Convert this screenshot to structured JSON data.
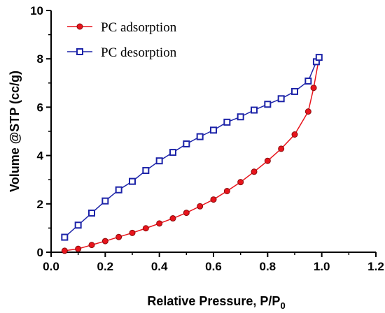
{
  "chart_data": {
    "type": "line",
    "xlabel": "Relative Pressure, P/P",
    "xlabel_subscript": "0",
    "ylabel": "Volume @STP  (cc/g)",
    "xlim": [
      0.0,
      1.2
    ],
    "ylim": [
      0,
      10
    ],
    "x_ticks": [
      "0.0",
      "0.2",
      "0.4",
      "0.6",
      "0.8",
      "1.0",
      "1.2"
    ],
    "y_ticks": [
      "0",
      "2",
      "4",
      "6",
      "8",
      "10"
    ],
    "grid": false,
    "legend_position": "top-left",
    "series": [
      {
        "name": "PC adsorption",
        "color": "#e8141c",
        "marker": "circle",
        "x": [
          0.05,
          0.1,
          0.15,
          0.2,
          0.25,
          0.3,
          0.35,
          0.4,
          0.45,
          0.5,
          0.55,
          0.6,
          0.65,
          0.7,
          0.75,
          0.8,
          0.85,
          0.9,
          0.95,
          0.97,
          0.99
        ],
        "y": [
          0.06,
          0.14,
          0.3,
          0.46,
          0.63,
          0.8,
          0.99,
          1.19,
          1.4,
          1.63,
          1.9,
          2.18,
          2.53,
          2.9,
          3.33,
          3.78,
          4.28,
          4.87,
          5.82,
          6.8,
          8.03
        ]
      },
      {
        "name": "PC desorption",
        "color": "#1c23a8",
        "marker": "square",
        "x": [
          0.05,
          0.1,
          0.15,
          0.2,
          0.25,
          0.3,
          0.35,
          0.4,
          0.45,
          0.5,
          0.55,
          0.6,
          0.65,
          0.7,
          0.75,
          0.8,
          0.85,
          0.9,
          0.95,
          0.98,
          0.99
        ],
        "y": [
          0.62,
          1.12,
          1.62,
          2.12,
          2.58,
          2.93,
          3.38,
          3.78,
          4.13,
          4.48,
          4.78,
          5.05,
          5.38,
          5.6,
          5.88,
          6.12,
          6.35,
          6.65,
          7.08,
          7.88,
          8.06
        ]
      }
    ]
  }
}
